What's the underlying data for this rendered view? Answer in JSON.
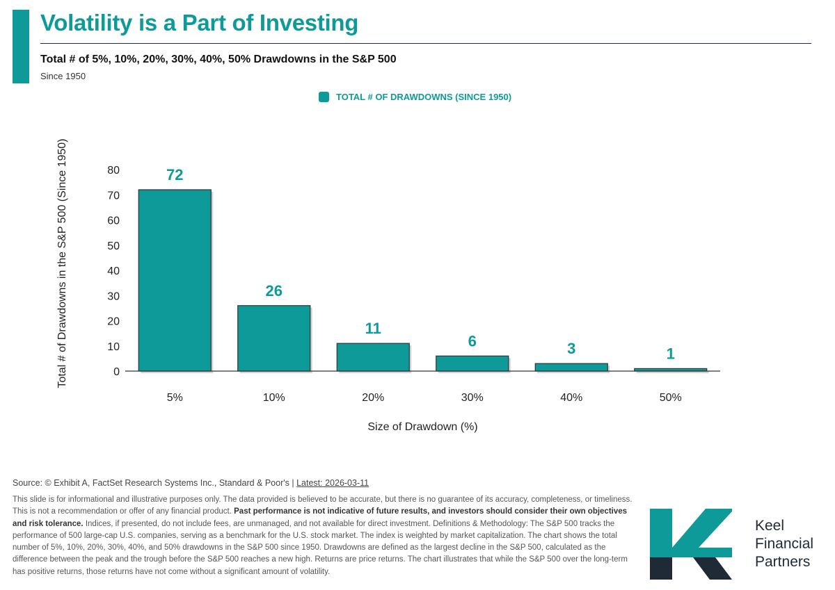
{
  "header": {
    "title": "Volatility is a Part of Investing",
    "subtitle": "Total # of 5%, 10%, 20%, 30%, 40%, 50% Drawdowns in the S&P 500",
    "since": "Since 1950"
  },
  "colors": {
    "accent": "#0e9a99",
    "dark": "#1f2a36"
  },
  "chart_data": {
    "type": "bar",
    "categories": [
      "5%",
      "10%",
      "20%",
      "30%",
      "40%",
      "50%"
    ],
    "series": [
      {
        "name": "TOTAL # OF DRAWDOWNS (SINCE 1950)",
        "values": [
          72,
          26,
          11,
          6,
          3,
          1
        ]
      }
    ],
    "data_labels": [
      "72",
      "26",
      "11",
      "6",
      "3",
      "1"
    ],
    "xlabel": "Size of Drawdown (%)",
    "ylabel": "Total # of Drawdowns in the S&P 500 (Since 1950)",
    "ylim": [
      0,
      80
    ],
    "yticks": [
      0,
      10,
      20,
      30,
      40,
      50,
      60,
      70,
      80
    ],
    "grid": false,
    "legend_position": "top-center"
  },
  "footer": {
    "source": "Source: © Exhibit A, FactSet Research Systems Inc., Standard & Poor's |",
    "latest": "Latest: 2026-03-11",
    "disclaimer_1": "This slide is for informational and illustrative purposes only. The data provided is believed to be accurate, but there is no guarantee of its accuracy, completeness, or timeliness. This is not a recommendation or offer of any financial product.",
    "disclaimer_bold": "Past performance is not indicative of future results, and investors should consider their own objectives and risk tolerance.",
    "disclaimer_2": "Indices, if presented, do not include fees, are unmanaged, and not available for direct investment. Definitions & Methodology: The S&P 500 tracks the performance of 500 large-cap U.S. companies, serving as a benchmark for the U.S. stock market. The index is weighted by market capitalization. The chart shows the total number of 5%, 10%, 20%, 30%, 40%, and 50% drawdowns in the S&P 500 since 1950. Drawdowns are defined as the largest decline in the S&P 500, calculated as the difference between the peak and the trough before the S&P 500 reaches a new high. Returns are price returns. The chart illustrates that while the S&P 500 over the long-term has positive returns, those returns have not come without a significant amount of volatility."
  },
  "brand": {
    "line1": "Keel",
    "line2": "Financial",
    "line3": "Partners",
    "logo_icon": "k-logo-icon"
  }
}
